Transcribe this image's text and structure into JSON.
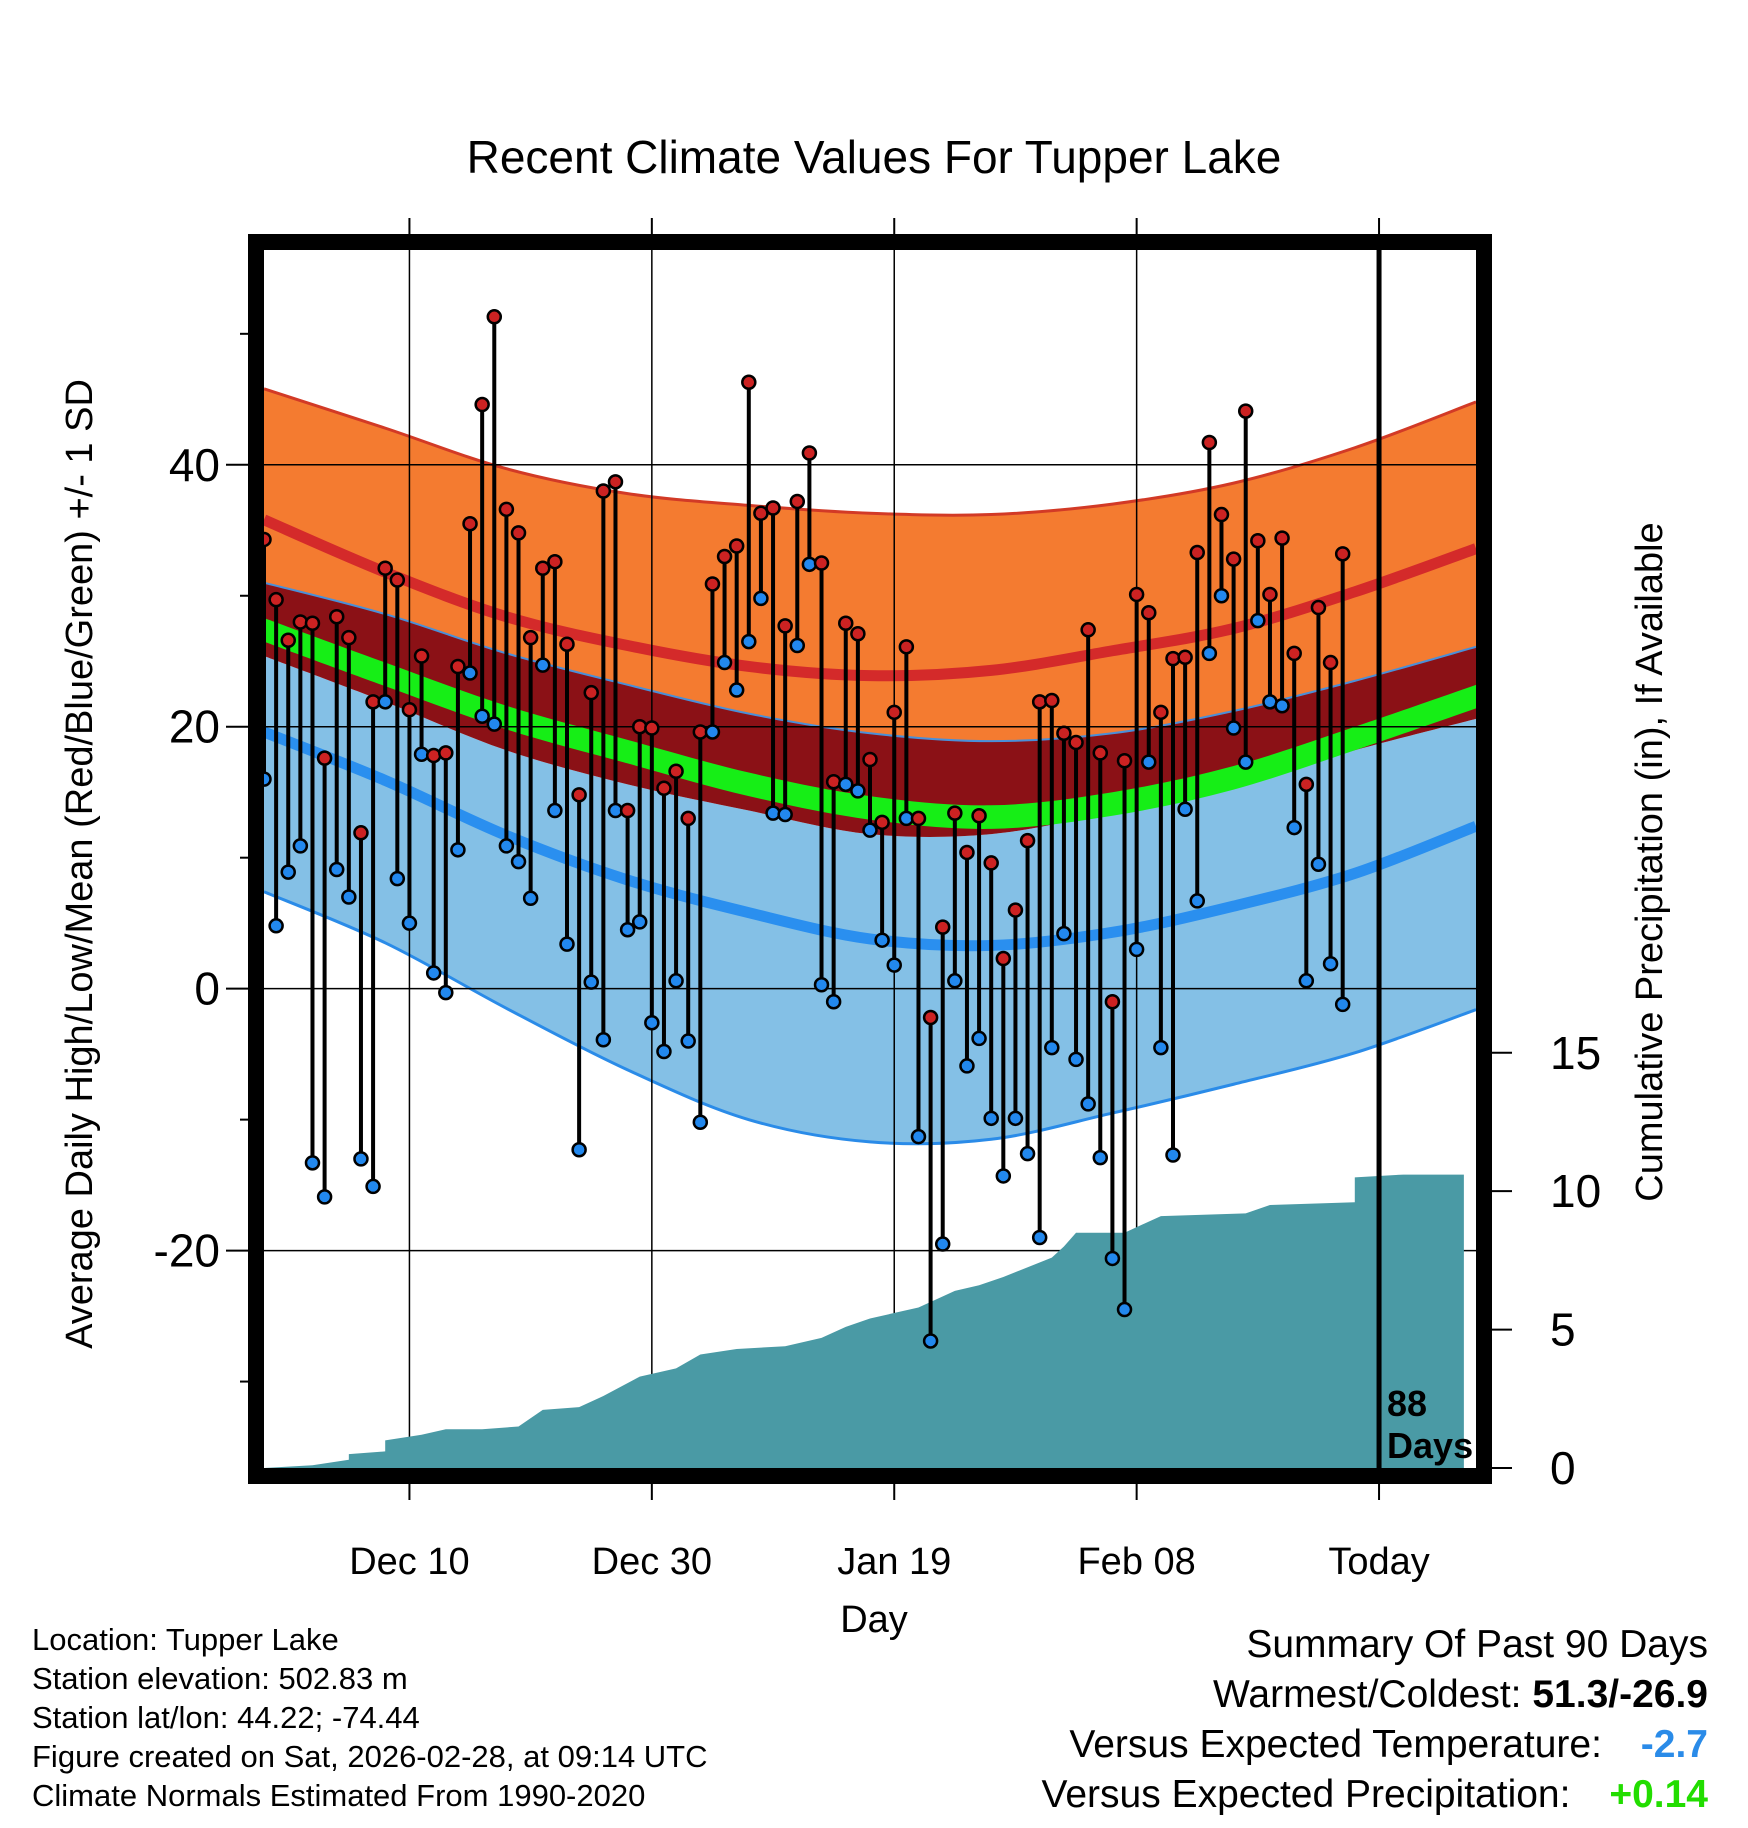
{
  "chart_data": {
    "type": "line",
    "title": "Recent Climate Values For Tupper Lake",
    "xlabel": "Day",
    "ylabel": "Average Daily High/Low/Mean (Red/Blue/Green) +/- 1 SD",
    "y2label": "Cumulative Precipitation (in), If Available",
    "xlim": [
      -10,
      90
    ],
    "ylim": [
      -36.6,
      56.4
    ],
    "y2lim": [
      0,
      44
    ],
    "yticks": [
      -20,
      0,
      20,
      40
    ],
    "y2ticks": [
      0,
      5,
      10,
      15
    ],
    "x_tick_positions": [
      2,
      22,
      42,
      62,
      82
    ],
    "x_tick_labels": [
      "Dec 10",
      "Dec 30",
      "Jan 19",
      "Feb 08",
      "Today"
    ],
    "today_x": 82,
    "days_label": "88",
    "days_unit": "Days",
    "normals": {
      "x": [
        -10,
        0,
        10,
        20,
        30,
        40,
        50,
        60,
        70,
        80,
        90
      ],
      "high_upper": [
        45.8,
        42.8,
        39.7,
        37.8,
        36.9,
        36.3,
        36.2,
        37.0,
        38.6,
        41.3,
        44.8
      ],
      "high_mean": [
        35.8,
        31.8,
        28.4,
        26.2,
        24.6,
        23.9,
        24.3,
        25.8,
        27.5,
        30.3,
        33.6
      ],
      "high_lower": [
        31.0,
        28.6,
        25.6,
        23.2,
        21.0,
        19.5,
        18.9,
        19.5,
        21.2,
        23.5,
        26.1
      ],
      "mean_upper": [
        28.3,
        24.9,
        21.6,
        19.0,
        16.5,
        14.7,
        14.0,
        15.0,
        17.0,
        20.0,
        23.2
      ],
      "mean_lower": [
        26.5,
        23.1,
        19.8,
        17.2,
        14.7,
        12.9,
        12.2,
        13.2,
        15.2,
        18.2,
        21.4
      ],
      "low_upper": [
        25.4,
        21.9,
        18.2,
        15.6,
        13.6,
        11.8,
        11.8,
        13.5,
        15.5,
        18.2,
        20.6
      ],
      "low_mean": [
        19.6,
        15.9,
        11.7,
        8.3,
        5.8,
        3.8,
        3.3,
        4.3,
        6.3,
        8.8,
        12.4
      ],
      "low_lower": [
        7.4,
        3.5,
        -1.5,
        -6.2,
        -10.0,
        -11.7,
        -11.5,
        -9.5,
        -7.3,
        -4.9,
        -1.6
      ]
    },
    "series": [
      {
        "name": "Daily High",
        "color": "#cc2222",
        "values": [
          34.3,
          29.7,
          26.6,
          28.0,
          27.9,
          17.6,
          28.4,
          26.8,
          11.9,
          21.9,
          32.1,
          31.2,
          21.3,
          25.4,
          17.8,
          18.0,
          24.6,
          35.5,
          44.6,
          51.3,
          36.6,
          34.8,
          26.8,
          32.1,
          32.6,
          26.3,
          14.8,
          22.6,
          38.0,
          38.7,
          13.6,
          20.0,
          19.9,
          15.3,
          16.6,
          13.0,
          19.6,
          30.9,
          33.0,
          33.8,
          46.3,
          36.3,
          36.7,
          27.7,
          37.2,
          40.9,
          32.5,
          15.8,
          27.9,
          27.1,
          17.5,
          12.7,
          21.1,
          26.1,
          13.0,
          -2.2,
          4.7,
          13.4,
          10.4,
          13.2,
          9.6,
          2.3,
          6.0,
          11.3,
          21.9,
          22.0,
          19.5,
          18.8,
          27.4,
          18.0,
          -1.0,
          17.4,
          30.1,
          28.7,
          21.1,
          25.2,
          25.3,
          33.3,
          41.7,
          36.2,
          32.8,
          44.1,
          34.2,
          30.1,
          34.4,
          25.6,
          15.6,
          29.1,
          24.9,
          33.2
        ]
      },
      {
        "name": "Daily Low",
        "color": "#2288ee",
        "values": [
          16.0,
          4.8,
          8.9,
          10.9,
          -13.3,
          -15.9,
          9.1,
          7.0,
          -13.0,
          -15.1,
          21.9,
          8.4,
          5.0,
          17.9,
          1.2,
          -0.3,
          10.6,
          24.1,
          20.8,
          20.2,
          10.9,
          9.7,
          6.9,
          24.7,
          13.6,
          3.4,
          -12.3,
          0.5,
          -3.9,
          13.6,
          4.5,
          5.1,
          -2.6,
          -4.8,
          0.6,
          -4.0,
          -10.2,
          19.6,
          24.9,
          22.8,
          26.5,
          29.8,
          13.4,
          13.3,
          26.2,
          32.4,
          0.3,
          -1.0,
          15.6,
          15.1,
          12.1,
          3.7,
          1.8,
          13.0,
          -11.3,
          -26.9,
          -19.5,
          0.6,
          -5.9,
          -3.8,
          -9.9,
          -14.3,
          -9.9,
          -12.6,
          -19.0,
          -4.5,
          4.2,
          -5.4,
          -8.8,
          -12.9,
          -20.6,
          -24.5,
          3.0,
          17.3,
          -4.5,
          -12.7,
          13.7,
          6.7,
          25.6,
          30.0,
          19.9,
          17.3,
          28.1,
          21.9,
          21.6,
          12.3,
          0.6,
          9.5,
          1.9,
          -1.2
        ]
      },
      {
        "name": "Cumulative Precipitation",
        "color": "#4a9aa5",
        "x": [
          -10,
          -6,
          -3,
          -3,
          0,
          0,
          3,
          5,
          8,
          11,
          13,
          16,
          18,
          21,
          24,
          26,
          29,
          33,
          36,
          38,
          40,
          44,
          47,
          49,
          51,
          55,
          56,
          57,
          61,
          63,
          64,
          71,
          73,
          80,
          80,
          84,
          89
        ],
        "values": [
          0,
          0.1,
          0.3,
          0.5,
          0.6,
          1.0,
          1.2,
          1.4,
          1.4,
          1.5,
          2.1,
          2.2,
          2.6,
          3.3,
          3.6,
          4.1,
          4.3,
          4.4,
          4.7,
          5.1,
          5.4,
          5.8,
          6.4,
          6.6,
          6.9,
          7.6,
          8.0,
          8.5,
          8.5,
          8.9,
          9.1,
          9.2,
          9.5,
          9.6,
          10.5,
          10.6,
          10.6
        ]
      }
    ]
  },
  "footer": {
    "location": "Location: Tupper Lake",
    "elevation": "Station elevation: 502.83 m",
    "latlon": "Station lat/lon: 44.22; -74.44",
    "created": "Figure created on Sat, 2026-02-28, at 09:14 UTC",
    "normals_note": "Climate Normals Estimated From 1990-2020"
  },
  "summary": {
    "heading": "Summary Of Past 90 Days",
    "warm_cold_label": "Warmest/Coldest:",
    "warm_cold_value": "51.3/-26.9",
    "temp_label": "Versus Expected Temperature:",
    "temp_value": "-2.7",
    "temp_color": "#2a8be8",
    "precip_label": "Versus Expected Precipitation:",
    "precip_value": "+0.14",
    "precip_color": "#22dd00"
  }
}
